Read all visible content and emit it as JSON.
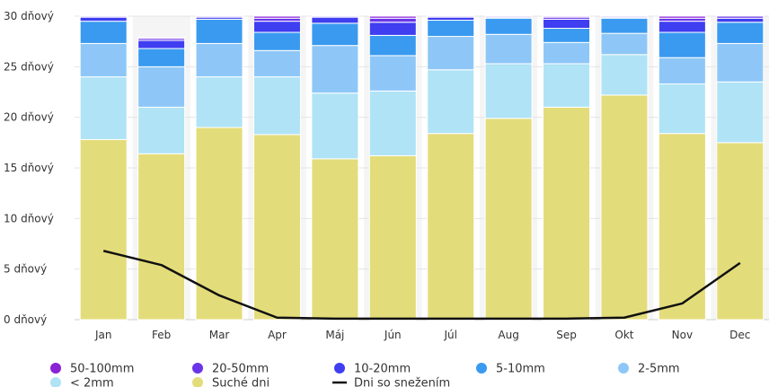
{
  "chart_data": {
    "type": "bar",
    "stacked": true,
    "categories": [
      "Jan",
      "Feb",
      "Mar",
      "Apr",
      "Máj",
      "Jún",
      "Júl",
      "Aug",
      "Sep",
      "Okt",
      "Nov",
      "Dec"
    ],
    "y_tick_labels": [
      "0 dňový",
      "5 dňový",
      "10 dňový",
      "15 dňový",
      "20 dňový",
      "25 dňový",
      "30 dňový"
    ],
    "y_ticks": [
      0,
      5,
      10,
      15,
      20,
      25,
      30
    ],
    "ylim": [
      0,
      30
    ],
    "grid": true,
    "legend_position": "bottom",
    "series": [
      {
        "name": "Suché dni",
        "color": "#e3dc7a",
        "values": [
          17.8,
          16.4,
          19.0,
          18.3,
          15.9,
          16.2,
          18.4,
          19.9,
          21.0,
          22.2,
          18.4,
          17.5
        ]
      },
      {
        "name": "< 2mm",
        "color": "#b0e3f5",
        "values": [
          6.2,
          4.6,
          5.0,
          5.7,
          6.5,
          6.4,
          6.3,
          5.4,
          4.3,
          4.0,
          4.9,
          6.0
        ]
      },
      {
        "name": "2-5mm",
        "color": "#8ec7f7",
        "values": [
          3.3,
          4.0,
          3.3,
          2.6,
          4.7,
          3.5,
          3.3,
          2.9,
          2.1,
          2.1,
          2.6,
          3.8
        ]
      },
      {
        "name": "5-10mm",
        "color": "#3a9af0",
        "values": [
          2.2,
          1.8,
          2.4,
          1.8,
          2.2,
          2.0,
          1.6,
          1.6,
          1.4,
          1.5,
          2.5,
          2.1
        ]
      },
      {
        "name": "10-20mm",
        "color": "#3f3ef0",
        "values": [
          0.4,
          0.8,
          0.2,
          1.1,
          0.6,
          1.3,
          0.3,
          0.1,
          0.9,
          0.1,
          1.1,
          0.4
        ]
      },
      {
        "name": "20-50mm",
        "color": "#6a35e8",
        "values": [
          0.1,
          0.2,
          0.1,
          0.3,
          0.1,
          0.4,
          0.1,
          0.1,
          0.2,
          0.1,
          0.3,
          0.2
        ]
      },
      {
        "name": "50-100mm",
        "color": "#8a22d8",
        "values": [
          0,
          0.1,
          0,
          0.2,
          0,
          0.2,
          0,
          0,
          0.1,
          0,
          0.2,
          0
        ]
      }
    ],
    "line_series": {
      "name": "Dni so snežením",
      "color": "#111111",
      "values": [
        6.8,
        5.4,
        2.4,
        0.2,
        0.1,
        0.1,
        0.1,
        0.1,
        0.1,
        0.2,
        1.6,
        5.6
      ]
    },
    "legend_items": [
      {
        "label": "50-100mm",
        "color": "#8a22d8",
        "shape": "circle"
      },
      {
        "label": "20-50mm",
        "color": "#6a35e8",
        "shape": "circle"
      },
      {
        "label": "10-20mm",
        "color": "#3f3ef0",
        "shape": "circle"
      },
      {
        "label": "5-10mm",
        "color": "#3a9af0",
        "shape": "circle"
      },
      {
        "label": "2-5mm",
        "color": "#8ec7f7",
        "shape": "circle"
      },
      {
        "label": "< 2mm",
        "color": "#b0e3f5",
        "shape": "circle"
      },
      {
        "label": "Suché dni",
        "color": "#e3dc7a",
        "shape": "circle"
      },
      {
        "label": "Dni so snežením",
        "color": "#111111",
        "shape": "line"
      }
    ]
  }
}
